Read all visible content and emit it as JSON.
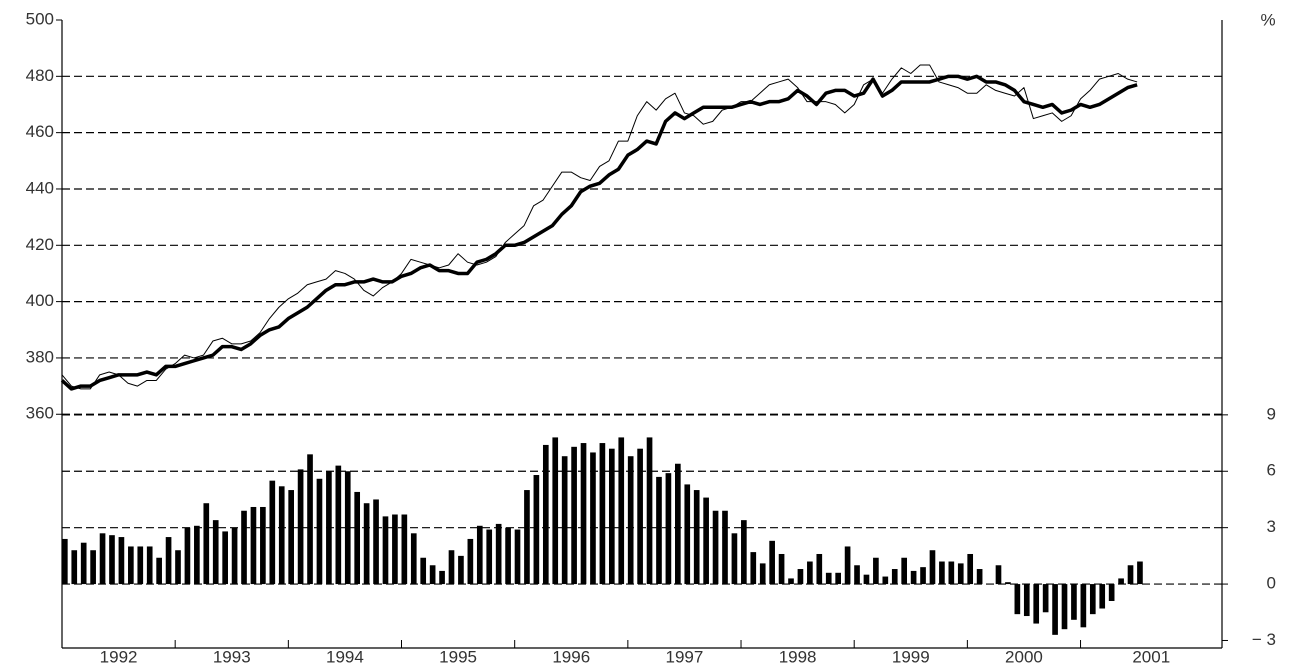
{
  "chart_data": {
    "type": "combo",
    "categories": [
      null,
      null,
      null,
      null,
      null,
      null,
      null,
      null,
      null,
      null,
      null,
      null,
      null,
      null,
      null,
      null,
      null,
      null,
      null,
      null,
      null,
      null,
      null,
      null,
      null,
      null,
      null,
      null,
      null,
      null,
      null,
      null,
      null,
      null,
      null,
      null,
      null,
      null,
      null,
      null,
      null,
      null,
      null,
      null,
      null,
      null,
      null,
      null,
      null,
      null,
      null,
      null,
      null,
      null,
      null,
      null,
      null,
      null,
      null,
      null,
      null,
      null,
      null,
      null,
      null,
      null,
      null,
      null,
      null,
      null,
      null,
      null,
      null,
      null,
      null,
      null,
      null,
      null,
      null,
      null,
      null,
      null,
      null,
      null,
      null,
      null,
      null,
      null,
      null,
      null,
      null,
      null,
      null,
      null,
      null,
      null,
      null,
      null,
      null,
      null,
      null,
      null,
      null,
      null,
      null,
      null,
      null,
      null,
      null,
      null,
      null,
      null,
      null,
      null,
      null
    ],
    "xlim": [
      0,
      123
    ],
    "xticks": [
      {
        "value": 0,
        "label": "1992"
      },
      {
        "value": 12,
        "label": "1993"
      },
      {
        "value": 24,
        "label": "1994"
      },
      {
        "value": 36,
        "label": "1995"
      },
      {
        "value": 48,
        "label": "1996"
      },
      {
        "value": 60,
        "label": "1997"
      },
      {
        "value": 72,
        "label": "1998"
      },
      {
        "value": 84,
        "label": "1999"
      },
      {
        "value": 96,
        "label": "2000"
      },
      {
        "value": 108,
        "label": "2001"
      }
    ],
    "ylim": [
      277,
      500
    ],
    "yticks": [
      360,
      380,
      400,
      420,
      440,
      460,
      480,
      500
    ],
    "y2label": "%",
    "y2lim": [
      -3.4,
      30
    ],
    "y2ticks": [
      {
        "value": -3,
        "label": "− 3"
      },
      0,
      3,
      6,
      9
    ],
    "grid": "dashed",
    "series": [
      {
        "type": "line",
        "color": "#000000",
        "line_width": 1,
        "values": [
          374,
          370,
          369,
          369,
          374,
          375,
          374,
          371,
          370,
          372,
          372,
          376,
          378,
          381,
          380,
          381,
          386,
          387,
          385,
          385,
          386,
          389,
          394,
          398,
          401,
          403,
          406,
          407,
          408,
          411,
          410,
          408,
          404,
          402,
          405,
          407,
          410,
          415,
          414,
          413,
          412,
          413,
          417,
          414,
          413,
          414,
          416,
          421,
          424,
          427,
          434,
          436,
          441,
          446,
          446,
          444,
          443,
          448,
          450,
          457,
          457,
          466,
          471,
          468,
          472,
          474,
          467,
          466,
          463,
          464,
          468,
          469,
          471,
          471,
          474,
          477,
          478,
          479,
          476,
          471,
          471,
          471,
          470,
          467,
          470,
          477,
          479,
          474,
          479,
          483,
          481,
          484,
          484,
          478,
          477,
          476,
          474,
          474,
          477,
          475,
          474,
          473,
          476,
          465,
          466,
          467,
          464,
          466,
          472,
          475,
          479,
          480,
          481,
          479,
          478
        ]
      },
      {
        "type": "line",
        "color": "#000000",
        "line_width": 3.5,
        "values": [
          372,
          369,
          370,
          370,
          372,
          373,
          374,
          374,
          374,
          375,
          374,
          377,
          377,
          378,
          379,
          380,
          381,
          384,
          384,
          383,
          385,
          388,
          390,
          391,
          394,
          396,
          398,
          401,
          404,
          406,
          406,
          407,
          407,
          408,
          407,
          407,
          409,
          410,
          412,
          413,
          411,
          411,
          410,
          410,
          414,
          415,
          417,
          420,
          420,
          421,
          423,
          425,
          427,
          431,
          434,
          439,
          441,
          442,
          445,
          447,
          452,
          454,
          457,
          456,
          464,
          467,
          465,
          467,
          469,
          469,
          469,
          469,
          470,
          471,
          470,
          471,
          471,
          472,
          475,
          473,
          470,
          474,
          475,
          475,
          473,
          474,
          479,
          473,
          475,
          478,
          478,
          478,
          478,
          479,
          480,
          480,
          479,
          480,
          478,
          478,
          477,
          475,
          471,
          470,
          469,
          470,
          467,
          468,
          470,
          469,
          470,
          472,
          474,
          476,
          477
        ]
      },
      {
        "type": "bar",
        "axis": "y2",
        "color": "#000000",
        "values": [
          2.4,
          1.8,
          2.2,
          1.8,
          2.7,
          2.6,
          2.5,
          2.0,
          2.0,
          2.0,
          1.4,
          2.5,
          1.8,
          3.0,
          3.1,
          4.3,
          3.4,
          2.8,
          3.0,
          3.9,
          4.1,
          4.1,
          5.5,
          5.2,
          5.0,
          6.1,
          6.9,
          5.6,
          6.0,
          6.3,
          6.0,
          4.9,
          4.3,
          4.5,
          3.6,
          3.7,
          3.7,
          2.7,
          1.4,
          1.0,
          0.7,
          1.8,
          1.5,
          2.4,
          3.1,
          2.9,
          3.2,
          3.0,
          2.9,
          5.0,
          5.8,
          7.4,
          7.8,
          6.8,
          7.3,
          7.5,
          7.0,
          7.5,
          7.2,
          7.8,
          6.8,
          7.2,
          7.8,
          5.7,
          5.9,
          6.4,
          5.3,
          5.0,
          4.6,
          3.9,
          3.9,
          2.7,
          3.4,
          1.7,
          1.1,
          2.3,
          1.6,
          0.3,
          0.8,
          1.2,
          1.6,
          0.6,
          0.6,
          2.0,
          1.0,
          0.5,
          1.4,
          0.4,
          0.8,
          1.4,
          0.7,
          0.9,
          1.8,
          1.2,
          1.2,
          1.1,
          1.6,
          0.8,
          0.0,
          1.0,
          0.1,
          -1.6,
          -1.7,
          -2.1,
          -1.5,
          -2.7,
          -2.4,
          -1.9,
          -2.3,
          -1.6,
          -1.3,
          -0.9,
          0.3,
          1.0,
          1.2
        ]
      }
    ]
  }
}
